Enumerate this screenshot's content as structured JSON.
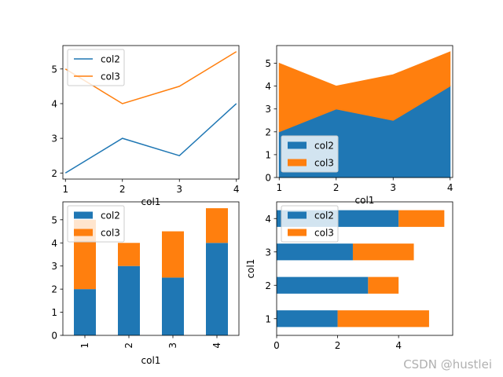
{
  "watermark": "CSDN @hustlei",
  "colors": {
    "col2": "#1f77b4",
    "col3": "#ff7f0e"
  },
  "chart_data": [
    {
      "type": "line",
      "x": [
        1,
        2,
        3,
        4
      ],
      "series": [
        {
          "name": "col2",
          "values": [
            2,
            3,
            2.5,
            4
          ]
        },
        {
          "name": "col3",
          "values": [
            5,
            4,
            4.5,
            5.5
          ]
        }
      ],
      "xticks": [
        "1",
        "2",
        "3",
        "4"
      ],
      "yticks": [
        "2",
        "3",
        "4",
        "5"
      ],
      "xlabel": "col1",
      "ylabel": "",
      "xlim": [
        0.955,
        4.045
      ],
      "ylim": [
        1.825,
        5.675
      ],
      "grid": false,
      "legend": "upper left"
    },
    {
      "type": "area",
      "stacked": true,
      "x": [
        1,
        2,
        3,
        4
      ],
      "series": [
        {
          "name": "col2",
          "values": [
            2,
            3,
            2.5,
            4
          ]
        },
        {
          "name": "col3",
          "values": [
            3,
            1,
            2,
            1.5
          ]
        }
      ],
      "xticks": [
        "1",
        "2",
        "3",
        "4"
      ],
      "yticks": [
        "0",
        "1",
        "2",
        "3",
        "4",
        "5"
      ],
      "xlabel": "col1",
      "ylabel": "",
      "xlim": [
        0.955,
        4.045
      ],
      "ylim": [
        0,
        5.775
      ],
      "grid": false,
      "legend": "lower left"
    },
    {
      "type": "bar",
      "stacked": true,
      "categories": [
        "1",
        "2",
        "3",
        "4"
      ],
      "series": [
        {
          "name": "col2",
          "values": [
            2,
            3,
            2.5,
            4
          ]
        },
        {
          "name": "col3",
          "values": [
            3,
            1,
            2,
            1.5
          ]
        }
      ],
      "yticks": [
        "0",
        "1",
        "2",
        "3",
        "4",
        "5"
      ],
      "xlabel": "col1",
      "ylabel": "",
      "ylim": [
        0,
        5.775
      ],
      "grid": false,
      "legend": "upper left"
    },
    {
      "type": "bar",
      "orientation": "horizontal",
      "stacked": true,
      "categories": [
        "1",
        "2",
        "3",
        "4"
      ],
      "series": [
        {
          "name": "col2",
          "values": [
            2,
            3,
            2.5,
            4
          ]
        },
        {
          "name": "col3",
          "values": [
            3,
            1,
            2,
            1.5
          ]
        }
      ],
      "xticks": [
        "0",
        "2",
        "4"
      ],
      "xlabel": "",
      "ylabel": "col1",
      "xlim": [
        0,
        5.775
      ],
      "grid": false,
      "legend": "upper left"
    }
  ]
}
